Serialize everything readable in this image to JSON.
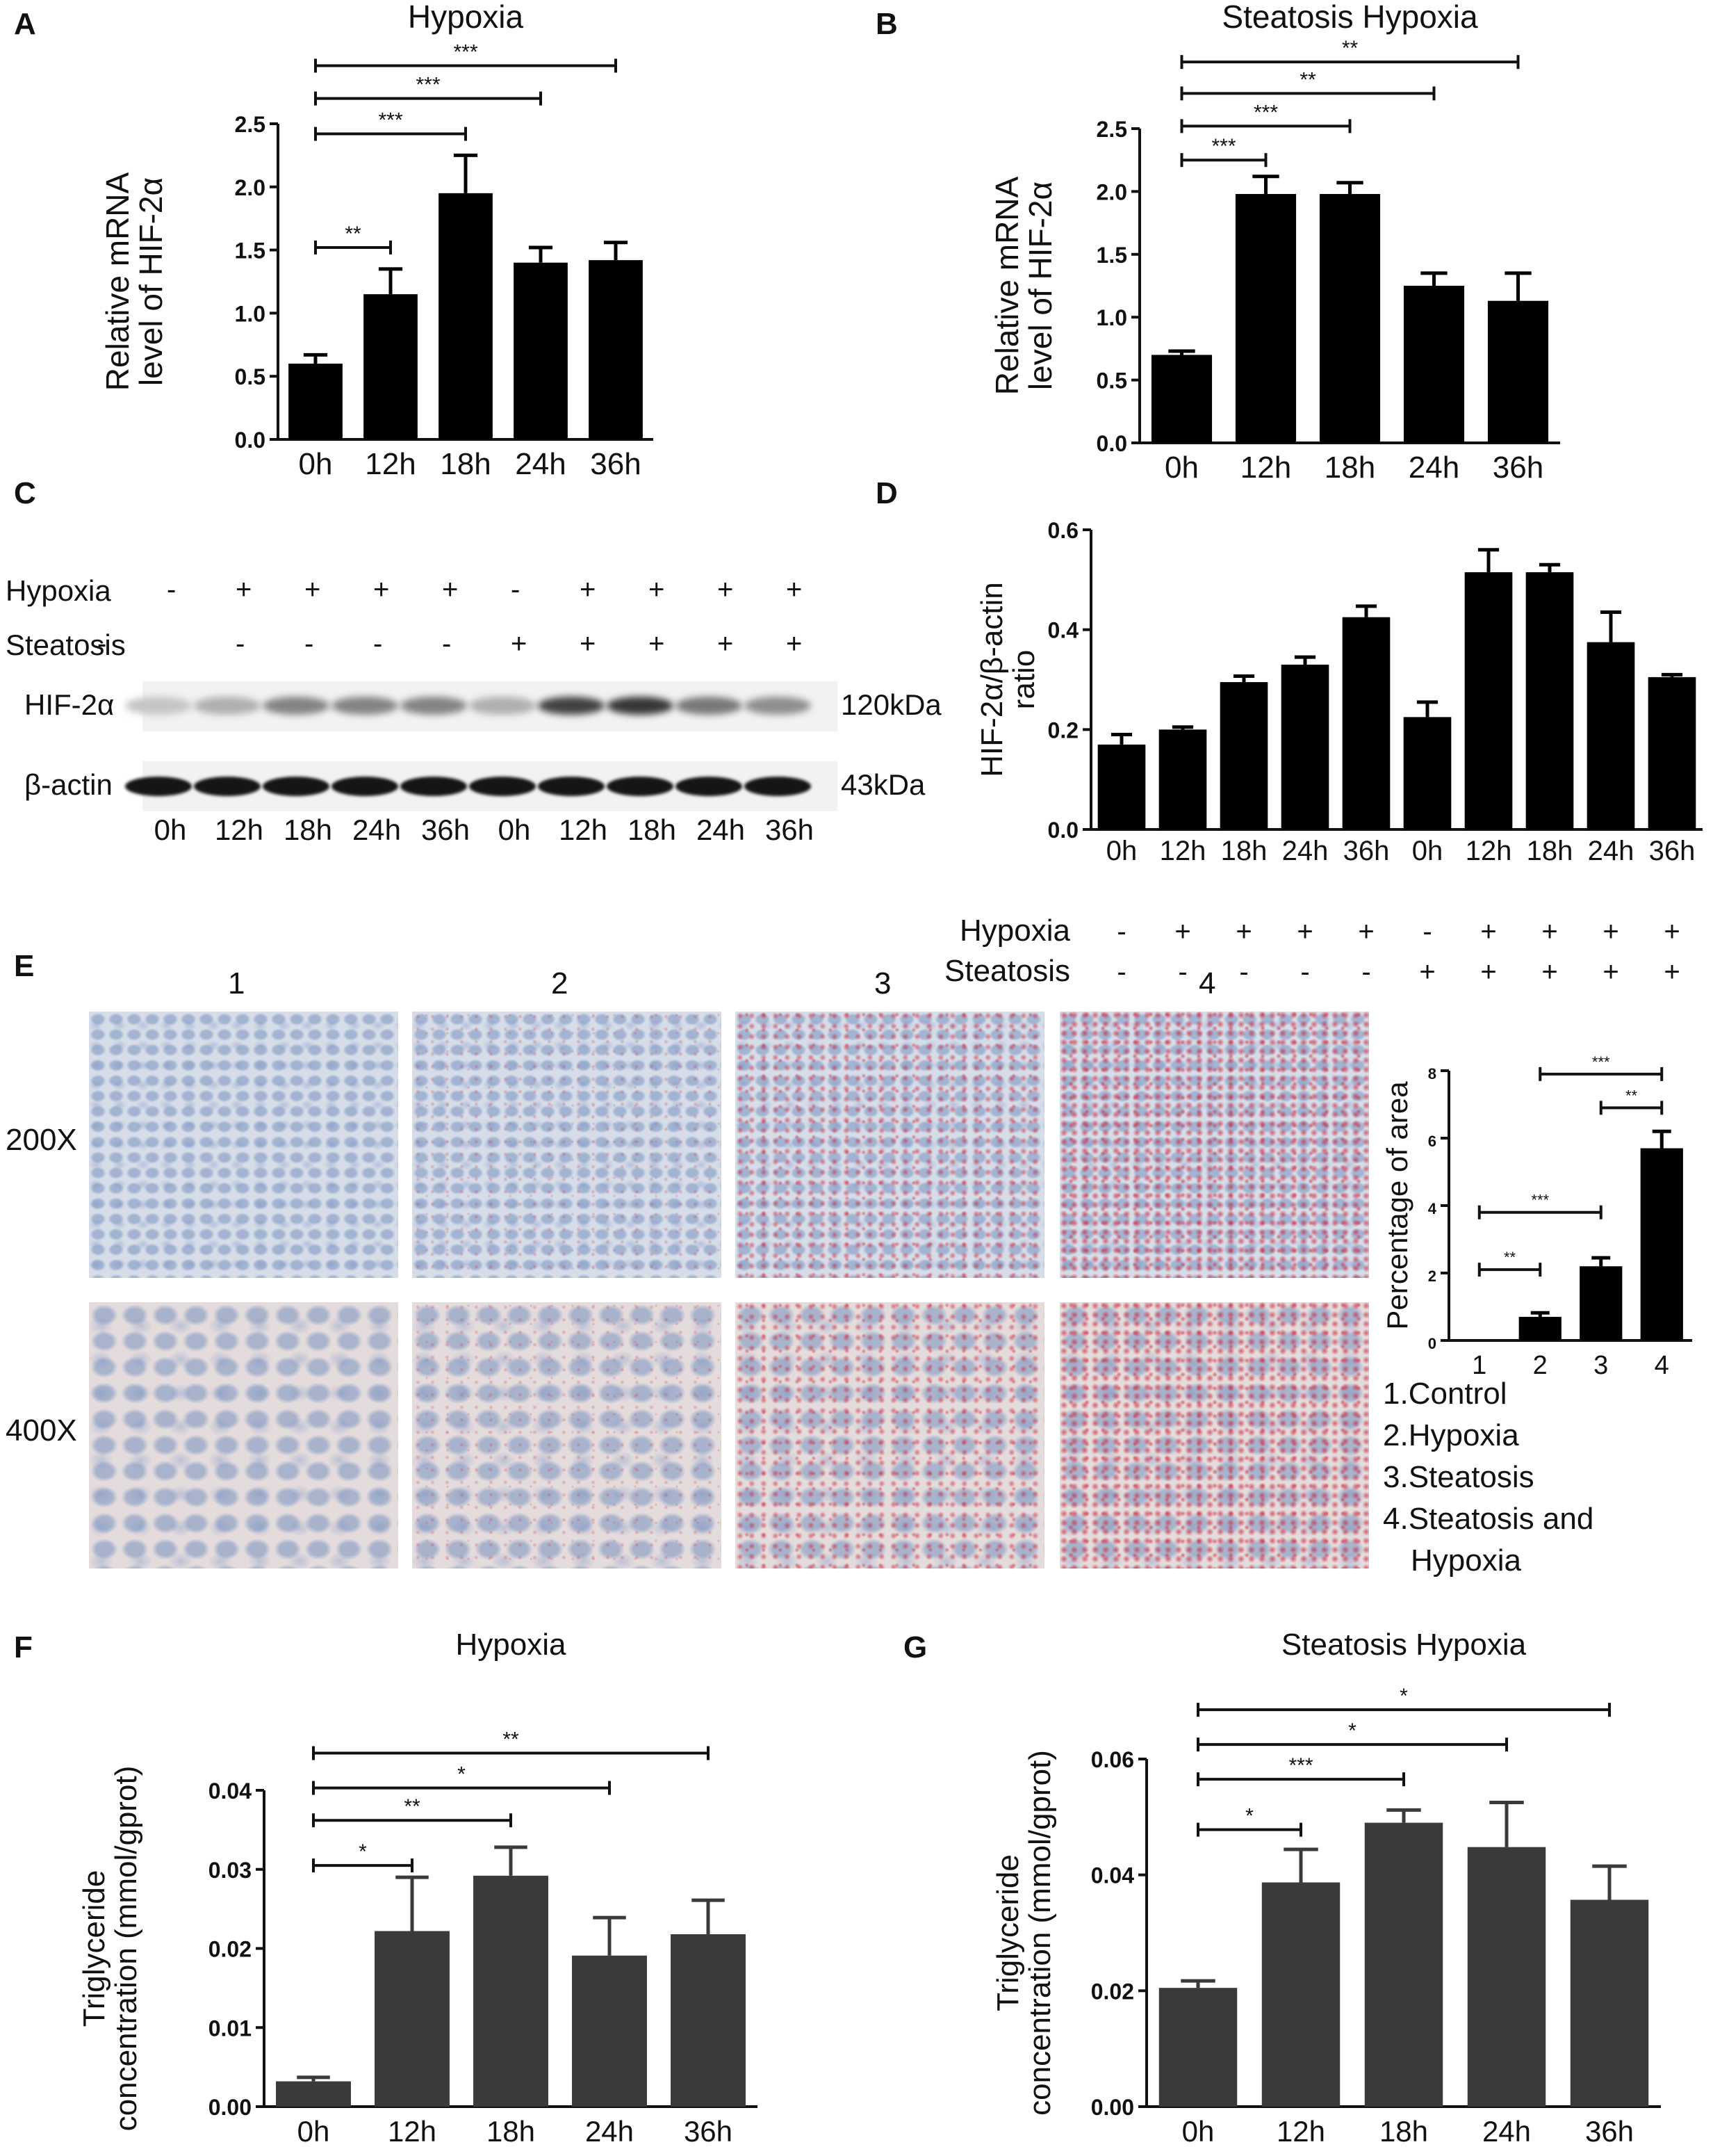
{
  "panels": {
    "A": {
      "letter": "A"
    },
    "B": {
      "letter": "B"
    },
    "C": {
      "letter": "C"
    },
    "D": {
      "letter": "D"
    },
    "E": {
      "letter": "E"
    },
    "F": {
      "letter": "F"
    },
    "G": {
      "letter": "G"
    }
  },
  "colors": {
    "barA": "#000000",
    "barF": "#3a3a3a",
    "stainBlue": "#8fa3c8",
    "stainRed": "#cc2233"
  },
  "chart_data": [
    {
      "id": "A",
      "type": "bar",
      "title": "Hypoxia",
      "ylabel": [
        "Relative mRNA",
        "level of HIF-2α"
      ],
      "categories": [
        "0h",
        "12h",
        "18h",
        "24h",
        "36h"
      ],
      "values": [
        0.6,
        1.15,
        1.95,
        1.4,
        1.42
      ],
      "errors": [
        0.07,
        0.2,
        0.3,
        0.12,
        0.14
      ],
      "ylim": [
        0,
        2.5
      ],
      "yticks": [
        "0.0",
        "0.5",
        "1.0",
        "1.5",
        "2.0",
        "2.5"
      ],
      "ytickvals": [
        0,
        0.5,
        1,
        1.5,
        2,
        2.5
      ],
      "sig": [
        {
          "from": 0,
          "to": 1,
          "label": "**",
          "level": 1.52
        },
        {
          "from": 0,
          "to": 2,
          "label": "***",
          "level": 2.42
        },
        {
          "from": 0,
          "to": 3,
          "label": "***",
          "level": 2.7
        },
        {
          "from": 0,
          "to": 4,
          "label": "***",
          "level": 2.96
        }
      ]
    },
    {
      "id": "B",
      "type": "bar",
      "title": "Steatosis Hypoxia",
      "ylabel": [
        "Relative mRNA",
        "level of HIF-2α"
      ],
      "categories": [
        "0h",
        "12h",
        "18h",
        "24h",
        "36h"
      ],
      "values": [
        0.7,
        1.98,
        1.98,
        1.25,
        1.13
      ],
      "errors": [
        0.03,
        0.14,
        0.09,
        0.1,
        0.22
      ],
      "ylim": [
        0,
        2.5
      ],
      "yticks": [
        "0.0",
        "0.5",
        "1.0",
        "1.5",
        "2.0",
        "2.5"
      ],
      "ytickvals": [
        0,
        0.5,
        1,
        1.5,
        2,
        2.5
      ],
      "sig": [
        {
          "from": 0,
          "to": 1,
          "label": "***",
          "level": 2.25
        },
        {
          "from": 0,
          "to": 2,
          "label": "***",
          "level": 2.52
        },
        {
          "from": 0,
          "to": 3,
          "label": "**",
          "level": 2.78
        },
        {
          "from": 0,
          "to": 4,
          "label": "**",
          "level": 3.03
        }
      ]
    },
    {
      "id": "D",
      "type": "bar",
      "ylabel": [
        "HIF-2α/β-actin",
        "ratio"
      ],
      "categories": [
        "0h",
        "12h",
        "18h",
        "24h",
        "36h",
        "0h",
        "12h",
        "18h",
        "24h",
        "36h"
      ],
      "values": [
        0.17,
        0.2,
        0.295,
        0.33,
        0.425,
        0.225,
        0.515,
        0.515,
        0.375,
        0.305
      ],
      "errors": [
        0.02,
        0.005,
        0.012,
        0.015,
        0.022,
        0.03,
        0.045,
        0.015,
        0.06,
        0.005
      ],
      "ylim": [
        0,
        0.6
      ],
      "yticks": [
        "0.0",
        "0.2",
        "0.4",
        "0.6"
      ],
      "ytickvals": [
        0,
        0.2,
        0.4,
        0.6
      ],
      "rows": [
        {
          "label": "Hypoxia",
          "marks": [
            "-",
            "+",
            "+",
            "+",
            "+",
            "-",
            "+",
            "+",
            "+",
            "+"
          ]
        },
        {
          "label": "Steatosis",
          "marks": [
            "-",
            "-",
            "-",
            "-",
            "-",
            "+",
            "+",
            "+",
            "+",
            "+"
          ]
        }
      ]
    },
    {
      "id": "E",
      "type": "bar",
      "ylabel": [
        "Percentage of area"
      ],
      "categories": [
        "1",
        "2",
        "3",
        "4"
      ],
      "values": [
        0,
        0.7,
        2.2,
        5.7
      ],
      "errors": [
        0,
        0.12,
        0.25,
        0.5
      ],
      "ylim": [
        0,
        8
      ],
      "yticks": [
        "0",
        "2",
        "4",
        "6",
        "8"
      ],
      "ytickvals": [
        0,
        2,
        4,
        6,
        8
      ],
      "sig": [
        {
          "from": 0,
          "to": 1,
          "label": "**",
          "level": 2.1
        },
        {
          "from": 0,
          "to": 2,
          "label": "***",
          "level": 3.8
        },
        {
          "from": 2,
          "to": 3,
          "label": "**",
          "level": 6.9
        },
        {
          "from": 1,
          "to": 3,
          "label": "***",
          "level": 7.9
        }
      ]
    },
    {
      "id": "F",
      "type": "bar",
      "title": "Hypoxia",
      "ylabel": [
        "Triglyceride",
        "concentration (mmol/gprot)"
      ],
      "categories": [
        "0h",
        "12h",
        "18h",
        "24h",
        "36h"
      ],
      "values": [
        0.0032,
        0.0222,
        0.0292,
        0.0191,
        0.0218
      ],
      "errors": [
        0.0005,
        0.0068,
        0.0036,
        0.0048,
        0.0043
      ],
      "ylim": [
        0,
        0.04
      ],
      "yticks": [
        "0.00",
        "0.01",
        "0.02",
        "0.03",
        "0.04"
      ],
      "ytickvals": [
        0,
        0.01,
        0.02,
        0.03,
        0.04
      ],
      "sig": [
        {
          "from": 0,
          "to": 1,
          "label": "*",
          "level": 0.0305
        },
        {
          "from": 0,
          "to": 2,
          "label": "**",
          "level": 0.0362
        },
        {
          "from": 0,
          "to": 3,
          "label": "*",
          "level": 0.0403
        },
        {
          "from": 0,
          "to": 4,
          "label": "**",
          "level": 0.0447
        }
      ]
    },
    {
      "id": "G",
      "type": "bar",
      "title": "Steatosis Hypoxia",
      "ylabel": [
        "Triglyceride",
        "concentration (mmol/gprot)"
      ],
      "categories": [
        "0h",
        "12h",
        "18h",
        "24h",
        "36h"
      ],
      "values": [
        0.0205,
        0.0387,
        0.049,
        0.0448,
        0.0357
      ],
      "errors": [
        0.0012,
        0.0057,
        0.0022,
        0.0077,
        0.0058
      ],
      "ylim": [
        0,
        0.06
      ],
      "yticks": [
        "0.00",
        "0.02",
        "0.04",
        "0.06"
      ],
      "ytickvals": [
        0,
        0.02,
        0.04,
        0.06
      ],
      "sig": [
        {
          "from": 0,
          "to": 1,
          "label": "*",
          "level": 0.0478
        },
        {
          "from": 0,
          "to": 2,
          "label": "***",
          "level": 0.0565
        },
        {
          "from": 0,
          "to": 3,
          "label": "*",
          "level": 0.0625
        },
        {
          "from": 0,
          "to": 4,
          "label": "*",
          "level": 0.0685
        }
      ]
    }
  ],
  "blot": {
    "rows": [
      {
        "label": "Hypoxia",
        "marks": [
          "-",
          "+",
          "+",
          "+",
          "+",
          "-",
          "+",
          "+",
          "+",
          "+"
        ]
      },
      {
        "label": "Steatosis",
        "marks": [
          "-",
          "-",
          "-",
          "-",
          "-",
          "+",
          "+",
          "+",
          "+",
          "+"
        ]
      }
    ],
    "bands": [
      {
        "label": "HIF-2α",
        "size": "120kDa",
        "intensity": [
          0.15,
          0.25,
          0.45,
          0.45,
          0.45,
          0.25,
          0.75,
          0.8,
          0.5,
          0.4
        ]
      },
      {
        "label": "β-actin",
        "size": "43kDa",
        "intensity": [
          0.95,
          0.95,
          0.95,
          0.95,
          0.95,
          0.95,
          0.95,
          0.95,
          0.95,
          0.95
        ]
      }
    ],
    "lanes": [
      "0h",
      "12h",
      "18h",
      "24h",
      "36h",
      "0h",
      "12h",
      "18h",
      "24h",
      "36h"
    ]
  },
  "staining": {
    "columns": [
      "1",
      "2",
      "3",
      "4"
    ],
    "rows": [
      "200X",
      "400X"
    ],
    "redLevel": [
      0.0,
      0.12,
      0.55,
      0.7
    ],
    "legend": [
      "1.Control",
      "2.Hypoxia",
      "3.Steatosis",
      "4.Steatosis and",
      "Hypoxia"
    ]
  }
}
